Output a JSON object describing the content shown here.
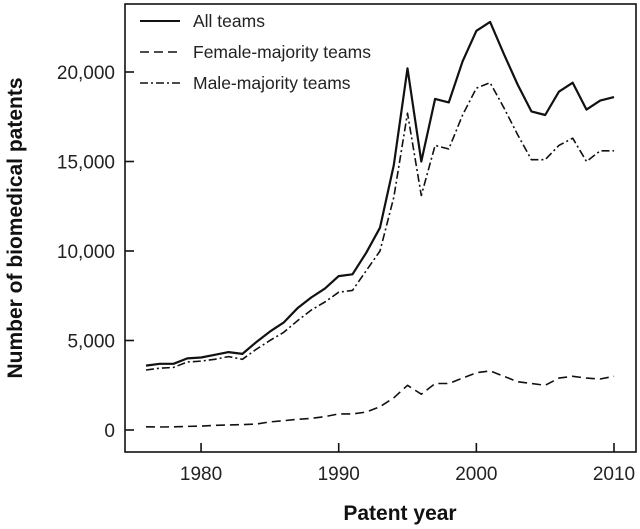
{
  "chart_data": {
    "type": "line",
    "title": "",
    "xlabel": "Patent year",
    "ylabel": "Number of biomedical patents",
    "xlim": [
      1975,
      2011
    ],
    "ylim": [
      -1000,
      23500
    ],
    "x_ticks": [
      1980,
      1990,
      2000,
      2010
    ],
    "x_tick_labels": [
      "1980",
      "1990",
      "2000",
      "2010"
    ],
    "y_ticks": [
      0,
      5000,
      10000,
      15000,
      20000
    ],
    "y_tick_labels": [
      "0",
      "5,000",
      "10,000",
      "15,000",
      "20,000"
    ],
    "grid": false,
    "legend_position": "top-left",
    "x": [
      1976,
      1977,
      1978,
      1979,
      1980,
      1981,
      1982,
      1983,
      1984,
      1985,
      1986,
      1987,
      1988,
      1989,
      1990,
      1991,
      1992,
      1993,
      1994,
      1995,
      1996,
      1997,
      1998,
      1999,
      2000,
      2001,
      2002,
      2003,
      2004,
      2005,
      2006,
      2007,
      2008,
      2009,
      2010
    ],
    "series": [
      {
        "name": "All teams",
        "style": "solid",
        "values": [
          3600,
          3700,
          3700,
          4000,
          4050,
          4200,
          4350,
          4250,
          4900,
          5500,
          6000,
          6800,
          7400,
          7900,
          8600,
          8700,
          9900,
          11300,
          14800,
          20200,
          15000,
          18500,
          18300,
          20600,
          22300,
          22800,
          21000,
          19300,
          17800,
          17600,
          18900,
          19400,
          17900,
          18400,
          18600
        ]
      },
      {
        "name": "Female-majority teams",
        "style": "dashed",
        "values": [
          180,
          170,
          180,
          200,
          220,
          260,
          280,
          300,
          330,
          450,
          520,
          600,
          650,
          750,
          900,
          900,
          1000,
          1300,
          1800,
          2500,
          2000,
          2600,
          2600,
          2900,
          3200,
          3300,
          3000,
          2700,
          2600,
          2500,
          2900,
          3000,
          2900,
          2850,
          3000
        ]
      },
      {
        "name": "Male-majority teams",
        "style": "dash-dot",
        "values": [
          3350,
          3450,
          3500,
          3800,
          3850,
          3950,
          4100,
          3950,
          4500,
          5000,
          5450,
          6100,
          6700,
          7150,
          7700,
          7800,
          8900,
          10000,
          13000,
          17700,
          13100,
          15900,
          15700,
          17600,
          19100,
          19400,
          18000,
          16500,
          15100,
          15100,
          15900,
          16300,
          15000,
          15600,
          15600
        ]
      }
    ]
  }
}
